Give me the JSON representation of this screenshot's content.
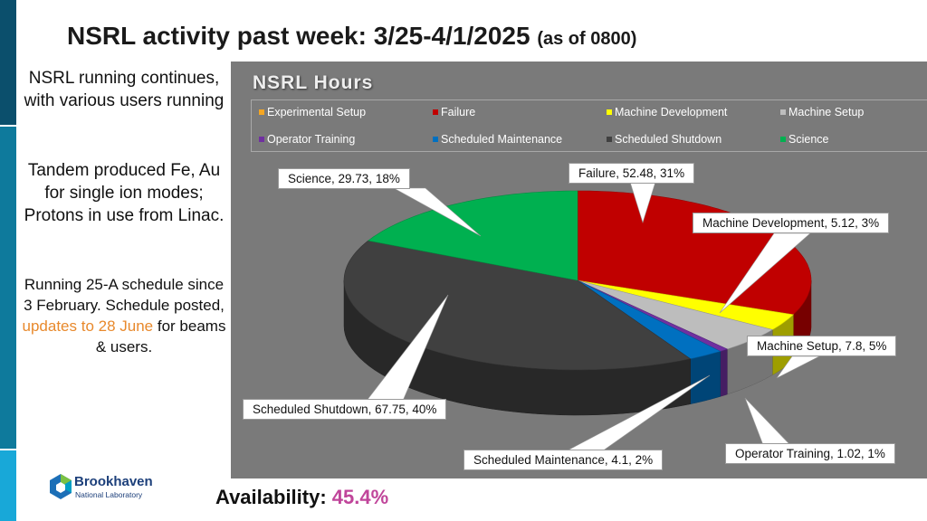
{
  "slide": {
    "title": "NSRL activity past week: 3/25-4/1/2025",
    "title_suffix": "(as of 0800)",
    "paragraph1": "NSRL running continues, with various users running",
    "paragraph2": "Tandem produced Fe, Au for single ion modes; Protons in use from Linac.",
    "paragraph3_a": "Running 25-A schedule since 3 February. Schedule posted,",
    "paragraph3_highlight": "updates to 28 June",
    "paragraph3_b": "for beams & users.",
    "availability_label": "Availability:",
    "availability_value": "45.4%",
    "logo_name": "Brookhaven",
    "logo_sub": "National Laboratory"
  },
  "chart_data": {
    "type": "pie",
    "title": "NSRL Hours",
    "legend_position": "top",
    "series": [
      {
        "name": "Experimental Setup",
        "value": 0,
        "percent": 0,
        "color": "#f5a623"
      },
      {
        "name": "Failure",
        "value": 52.48,
        "percent": 31,
        "color": "#c00000",
        "label": "Failure, 52.48, 31%"
      },
      {
        "name": "Machine Development",
        "value": 5.12,
        "percent": 3,
        "color": "#ffff00",
        "label": "Machine Development, 5.12, 3%"
      },
      {
        "name": "Machine Setup",
        "value": 7.8,
        "percent": 5,
        "color": "#bdbdbd",
        "label": "Machine Setup, 7.8, 5%"
      },
      {
        "name": "Operator Training",
        "value": 1.02,
        "percent": 1,
        "color": "#7030a0",
        "label": "Operator Training, 1.02, 1%"
      },
      {
        "name": "Scheduled Maintenance",
        "value": 4.1,
        "percent": 2,
        "color": "#0070c0",
        "label": "Scheduled Maintenance, 4.1, 2%"
      },
      {
        "name": "Scheduled Shutdown",
        "value": 67.75,
        "percent": 40,
        "color": "#404040",
        "label": "Scheduled Shutdown, 67.75, 40%"
      },
      {
        "name": "Science",
        "value": 29.73,
        "percent": 18,
        "color": "#00b050",
        "label": "Science, 29.73, 18%"
      }
    ]
  }
}
